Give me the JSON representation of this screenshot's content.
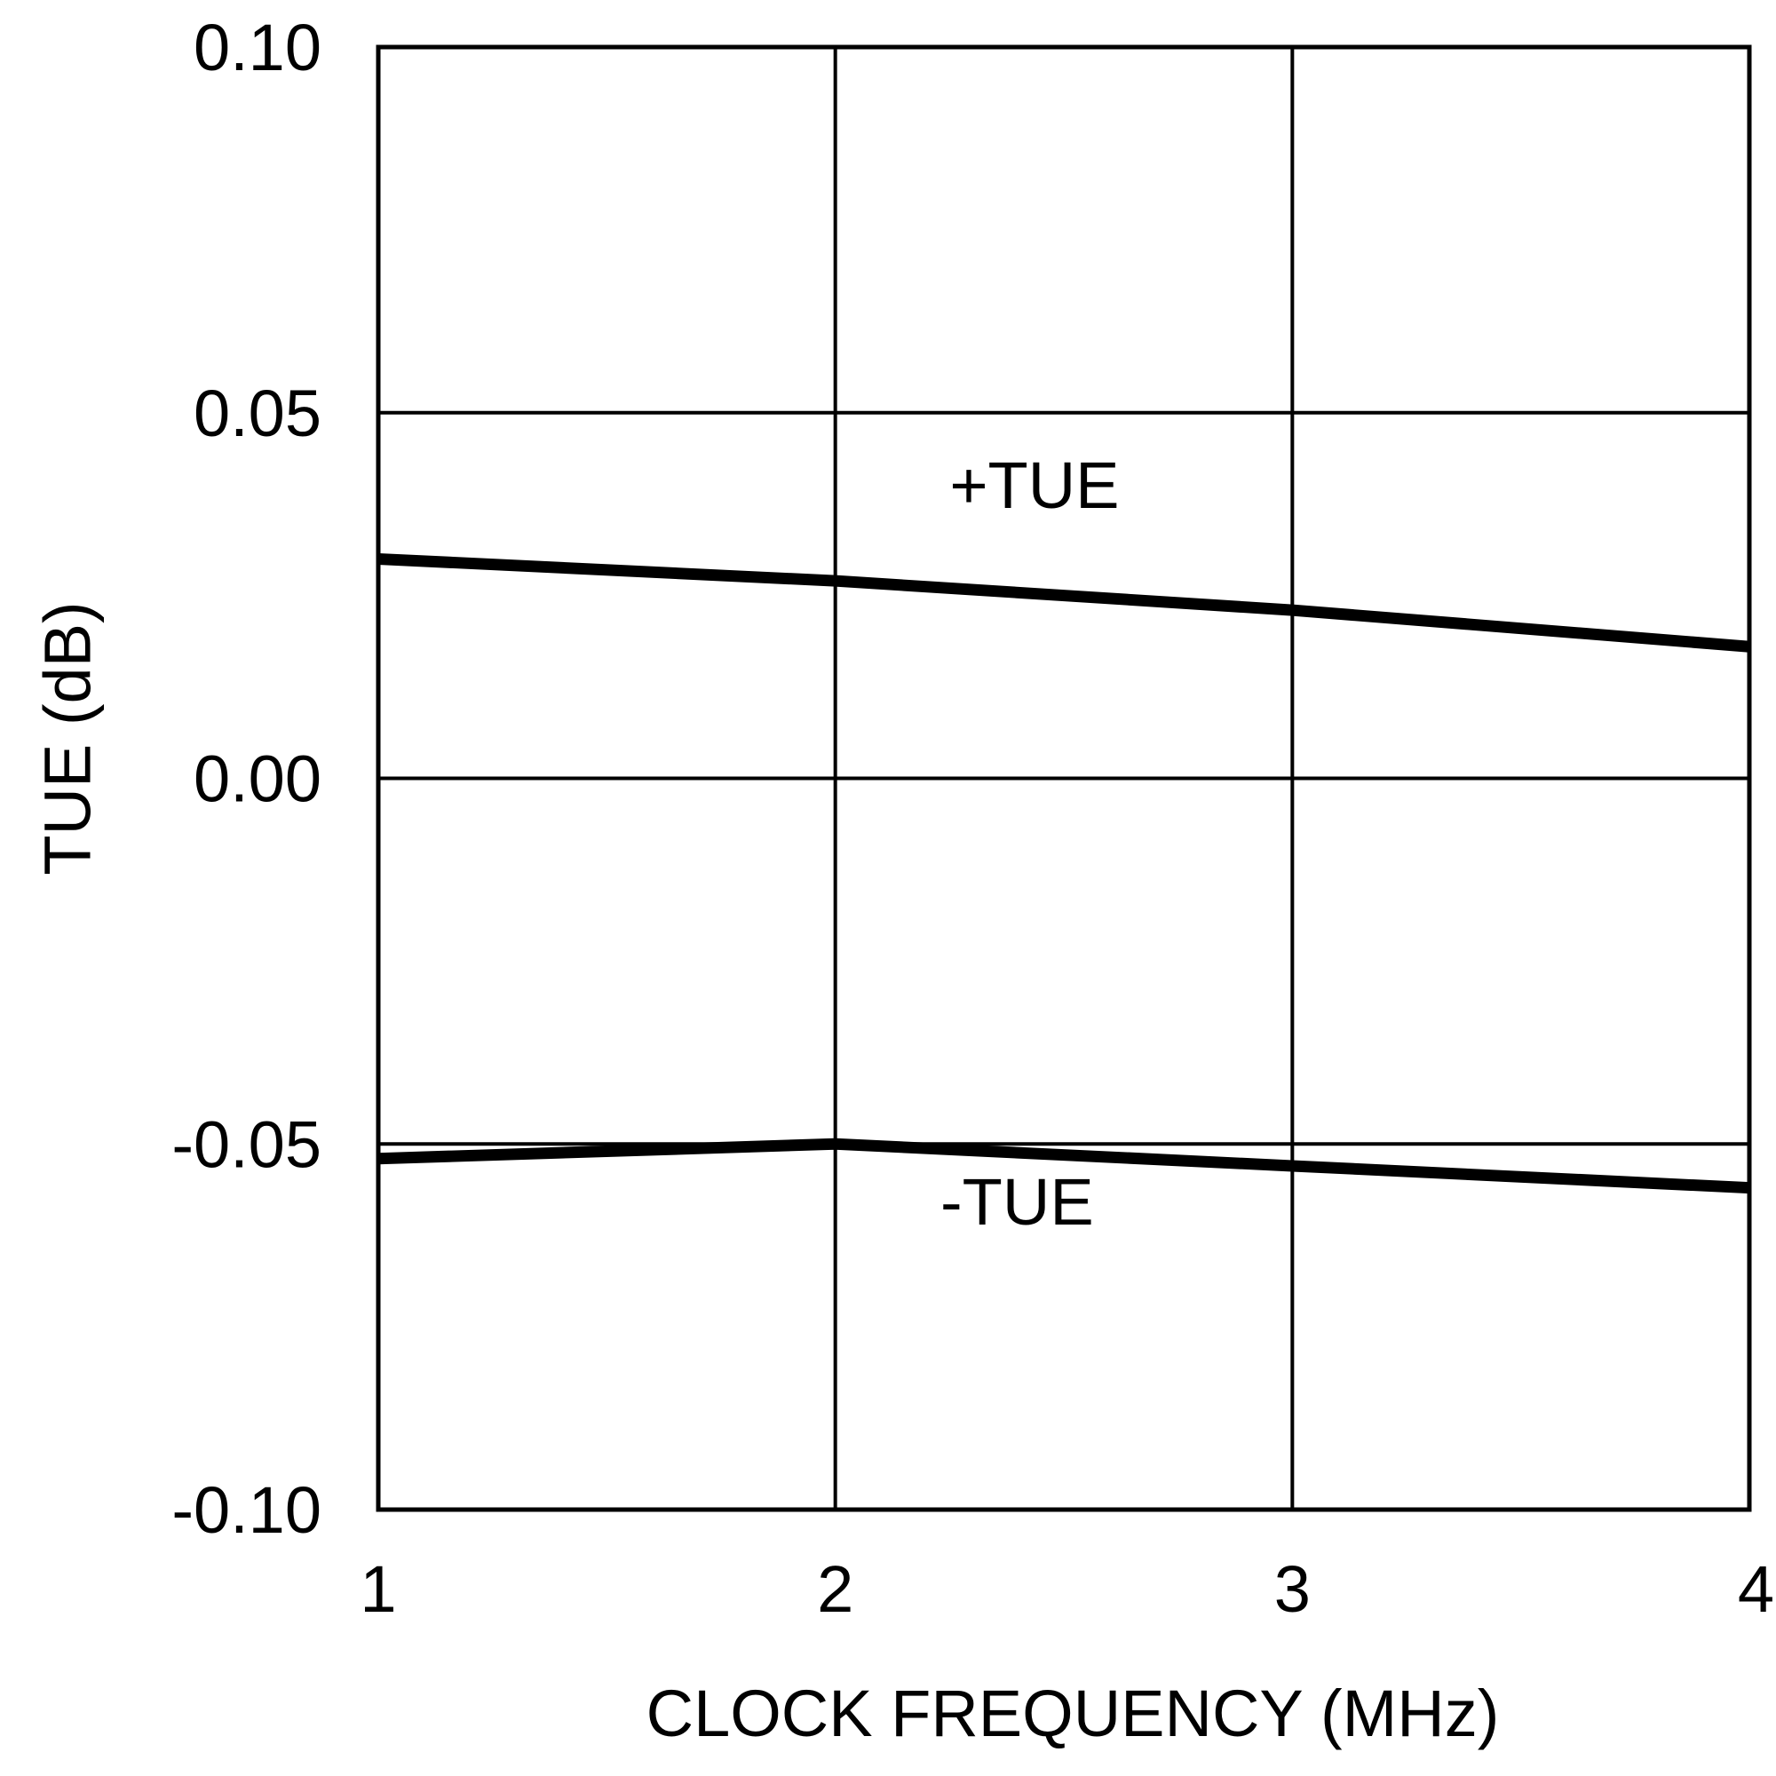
{
  "chart_data": {
    "type": "line",
    "title": "",
    "xlabel": "CLOCK FREQUENCY (MHz)",
    "ylabel": "TUE (dB)",
    "xlim": [
      1,
      4
    ],
    "ylim": [
      -0.1,
      0.1
    ],
    "x_ticks": [
      1,
      2,
      3,
      4
    ],
    "x_tick_labels": [
      "1",
      "2",
      "3",
      "4"
    ],
    "y_ticks": [
      -0.1,
      -0.05,
      0.0,
      0.05,
      0.1
    ],
    "y_tick_labels": [
      "-0.10",
      "-0.05",
      "0.00",
      "0.05",
      "0.10"
    ],
    "grid": true,
    "line_color": "#000000",
    "series": [
      {
        "name": "+TUE",
        "x": [
          1,
          2,
          3,
          4
        ],
        "y": [
          0.03,
          0.027,
          0.023,
          0.018
        ]
      },
      {
        "name": "-TUE",
        "x": [
          1,
          2,
          3,
          4
        ],
        "y": [
          -0.052,
          -0.05,
          -0.053,
          -0.056
        ]
      }
    ],
    "annotations": [
      {
        "text": "+TUE",
        "x": 2.25,
        "y": 0.037
      },
      {
        "text": "-TUE",
        "x": 2.23,
        "y": -0.061
      }
    ]
  }
}
